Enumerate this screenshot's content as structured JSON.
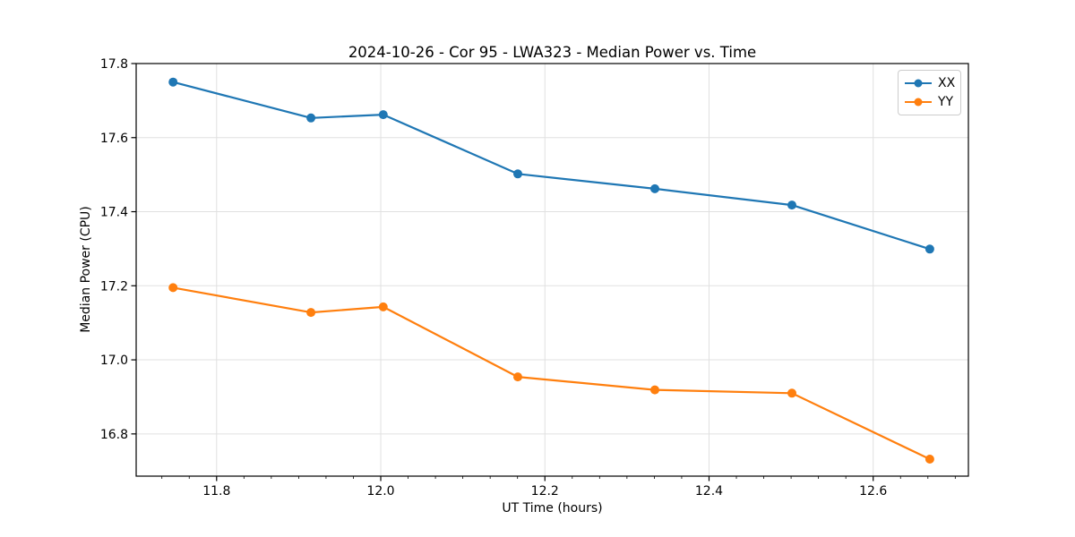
{
  "chart_data": {
    "type": "line",
    "title": "2024-10-26 - Cor 95 - LWA323 - Median Power vs. Time",
    "xlabel": "UT Time (hours)",
    "ylabel": "Median Power (CPU)",
    "x": [
      11.747,
      11.915,
      12.003,
      12.167,
      12.334,
      12.501,
      12.669
    ],
    "series": [
      {
        "name": "XX",
        "color": "#1f77b4",
        "marker": "circle",
        "values": [
          17.75,
          17.653,
          17.662,
          17.502,
          17.462,
          17.418,
          17.299
        ]
      },
      {
        "name": "YY",
        "color": "#ff7f0e",
        "marker": "circle",
        "values": [
          17.195,
          17.128,
          17.143,
          16.954,
          16.919,
          16.91,
          16.732
        ]
      }
    ],
    "xlim": [
      11.702,
      12.716
    ],
    "ylim": [
      16.686,
      17.8
    ],
    "xticks": [
      "11.8",
      "12.0",
      "12.2",
      "12.4",
      "12.6"
    ],
    "yticks": [
      "16.8",
      "17.0",
      "17.2",
      "17.4",
      "17.6",
      "17.8"
    ],
    "x_minor_step": 0.0333333,
    "grid": true,
    "legend_position": "upper right"
  },
  "colors": {
    "grid": "#e0e0e0",
    "spine": "#000000",
    "tick_label": "#000000",
    "background": "#ffffff"
  }
}
